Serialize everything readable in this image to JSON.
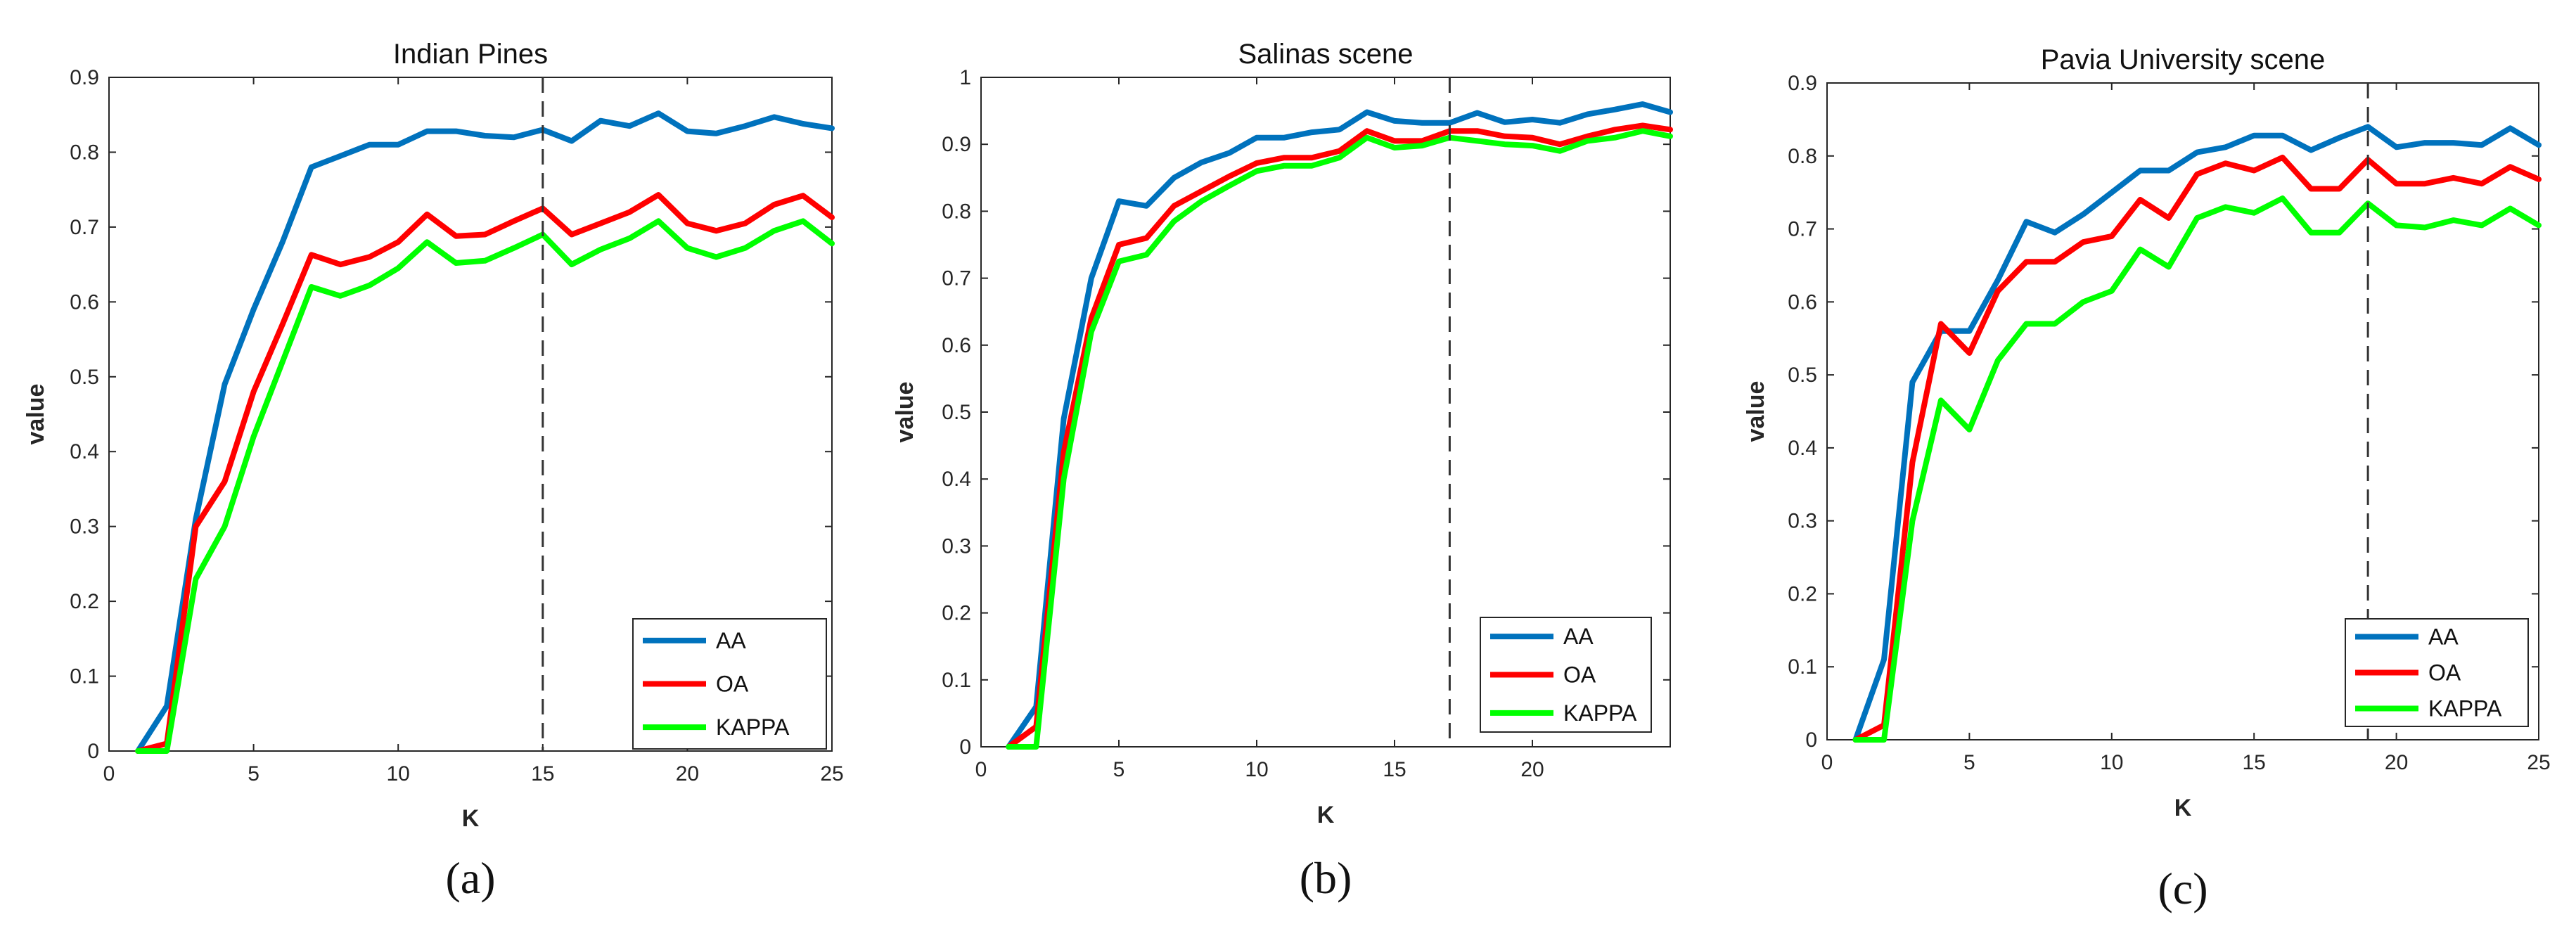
{
  "figure": {
    "colors": {
      "AA": "#0072BD",
      "OA": "#FF0000",
      "KAPPA": "#00FF00"
    }
  },
  "chart_data": [
    {
      "type": "line",
      "title": "Indian Pines",
      "caption": "(a)",
      "xlabel": "K",
      "ylabel": "value",
      "xlim": [
        0,
        25
      ],
      "ylim": [
        0,
        0.9
      ],
      "xticks": [
        0,
        5,
        10,
        15,
        20,
        25
      ],
      "yticks": [
        0,
        0.1,
        0.2,
        0.3,
        0.4,
        0.5,
        0.6,
        0.7,
        0.8,
        0.9
      ],
      "vline": 15,
      "legend_position": "bottom-right",
      "x": [
        1,
        2,
        3,
        4,
        5,
        6,
        7,
        8,
        9,
        10,
        11,
        12,
        13,
        14,
        15,
        16,
        17,
        18,
        19,
        20,
        21,
        22,
        23,
        24,
        25
      ],
      "series": [
        {
          "name": "AA",
          "values": [
            0,
            0.06,
            0.31,
            0.49,
            0.59,
            0.68,
            0.78,
            0.795,
            0.81,
            0.81,
            0.828,
            0.828,
            0.822,
            0.82,
            0.83,
            0.815,
            0.842,
            0.835,
            0.852,
            0.828,
            0.825,
            0.835,
            0.847,
            0.838,
            0.832
          ]
        },
        {
          "name": "OA",
          "values": [
            0,
            0.01,
            0.3,
            0.36,
            0.48,
            0.57,
            0.663,
            0.65,
            0.66,
            0.68,
            0.717,
            0.688,
            0.69,
            0.708,
            0.725,
            0.69,
            0.705,
            0.72,
            0.743,
            0.705,
            0.695,
            0.705,
            0.73,
            0.742,
            0.713
          ]
        },
        {
          "name": "KAPPA",
          "values": [
            0,
            0,
            0.23,
            0.3,
            0.42,
            0.52,
            0.62,
            0.608,
            0.622,
            0.645,
            0.68,
            0.652,
            0.655,
            0.672,
            0.69,
            0.65,
            0.67,
            0.685,
            0.708,
            0.672,
            0.66,
            0.672,
            0.695,
            0.708,
            0.678
          ]
        }
      ]
    },
    {
      "type": "line",
      "title": "Salinas scene",
      "caption": "(b)",
      "xlabel": "K",
      "ylabel": "value",
      "xlim": [
        0,
        25
      ],
      "ylim": [
        0,
        1
      ],
      "xticks": [
        0,
        5,
        10,
        15,
        20
      ],
      "yticks": [
        0,
        0.1,
        0.2,
        0.3,
        0.4,
        0.5,
        0.6,
        0.7,
        0.8,
        0.9,
        1
      ],
      "vline": 17,
      "legend_position": "bottom-right",
      "x": [
        1,
        2,
        3,
        4,
        5,
        6,
        7,
        8,
        9,
        10,
        11,
        12,
        13,
        14,
        15,
        16,
        17,
        18,
        19,
        20,
        21,
        22,
        23,
        24,
        25
      ],
      "series": [
        {
          "name": "AA",
          "values": [
            0,
            0.06,
            0.49,
            0.7,
            0.815,
            0.808,
            0.85,
            0.873,
            0.887,
            0.91,
            0.91,
            0.918,
            0.922,
            0.948,
            0.935,
            0.932,
            0.932,
            0.947,
            0.933,
            0.937,
            0.932,
            0.945,
            0.952,
            0.96,
            0.948
          ]
        },
        {
          "name": "OA",
          "values": [
            0,
            0.03,
            0.44,
            0.64,
            0.75,
            0.76,
            0.808,
            0.83,
            0.852,
            0.872,
            0.88,
            0.88,
            0.89,
            0.92,
            0.905,
            0.905,
            0.92,
            0.92,
            0.912,
            0.91,
            0.9,
            0.912,
            0.922,
            0.928,
            0.922
          ]
        },
        {
          "name": "KAPPA",
          "values": [
            0,
            0,
            0.4,
            0.62,
            0.725,
            0.735,
            0.785,
            0.815,
            0.838,
            0.86,
            0.868,
            0.868,
            0.88,
            0.91,
            0.895,
            0.898,
            0.91,
            0.905,
            0.9,
            0.898,
            0.89,
            0.905,
            0.91,
            0.92,
            0.912
          ]
        }
      ]
    },
    {
      "type": "line",
      "title": "Pavia University scene",
      "caption": "(c)",
      "xlabel": "K",
      "ylabel": "value",
      "xlim": [
        0,
        25
      ],
      "ylim": [
        0,
        0.9
      ],
      "xticks": [
        0,
        5,
        10,
        15,
        20,
        25
      ],
      "yticks": [
        0,
        0.1,
        0.2,
        0.3,
        0.4,
        0.5,
        0.6,
        0.7,
        0.8,
        0.9
      ],
      "vline": 19,
      "legend_position": "bottom-right",
      "x": [
        1,
        2,
        3,
        4,
        5,
        6,
        7,
        8,
        9,
        10,
        11,
        12,
        13,
        14,
        15,
        16,
        17,
        18,
        19,
        20,
        21,
        22,
        23,
        24,
        25
      ],
      "series": [
        {
          "name": "AA",
          "values": [
            0,
            0.11,
            0.49,
            0.56,
            0.56,
            0.63,
            0.71,
            0.695,
            0.72,
            0.75,
            0.78,
            0.78,
            0.805,
            0.812,
            0.828,
            0.828,
            0.808,
            0.825,
            0.84,
            0.812,
            0.818,
            0.818,
            0.815,
            0.838,
            0.815
          ]
        },
        {
          "name": "OA",
          "values": [
            0,
            0.02,
            0.38,
            0.57,
            0.53,
            0.615,
            0.655,
            0.655,
            0.682,
            0.69,
            0.74,
            0.715,
            0.775,
            0.79,
            0.78,
            0.798,
            0.755,
            0.755,
            0.795,
            0.762,
            0.762,
            0.77,
            0.762,
            0.785,
            0.768
          ]
        },
        {
          "name": "KAPPA",
          "values": [
            0,
            0,
            0.3,
            0.465,
            0.425,
            0.52,
            0.57,
            0.57,
            0.6,
            0.615,
            0.672,
            0.648,
            0.715,
            0.73,
            0.722,
            0.742,
            0.695,
            0.695,
            0.735,
            0.705,
            0.702,
            0.712,
            0.705,
            0.728,
            0.705
          ]
        }
      ]
    }
  ]
}
